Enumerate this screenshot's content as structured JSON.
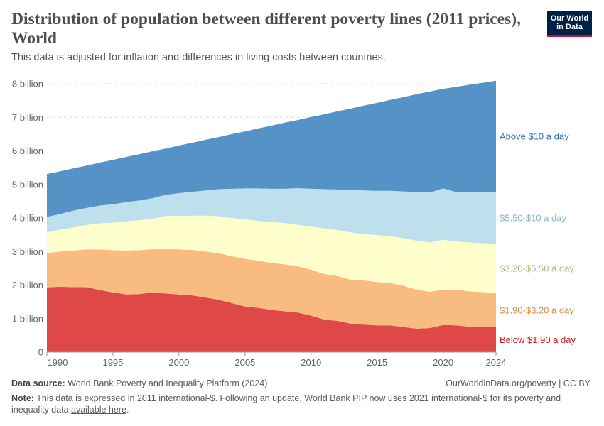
{
  "header": {
    "title": "Distribution of population between different poverty lines (2011 prices), World",
    "subtitle": "This data is adjusted for inflation and differences in living costs between countries.",
    "logo": "Our World in Data"
  },
  "footer": {
    "source_label": "Data source:",
    "source_text": "World Bank Poverty and Inequality Platform (2024)",
    "credit": "OurWorldinData.org/poverty | CC BY",
    "note_label": "Note:",
    "note_text": "This data is expressed in 2011 international-$. Following an update, World Bank PIP now uses 2021 international-$ for its poverty and inequality data ",
    "note_link": "available here",
    "note_end": "."
  },
  "chart_data": {
    "type": "area",
    "stacked": true,
    "title": "Distribution of population between different poverty lines (2011 prices), World",
    "xlim": [
      1990,
      2024
    ],
    "ylim": [
      0,
      8000000000
    ],
    "x_ticks": [
      1990,
      1995,
      2000,
      2005,
      2010,
      2015,
      2020,
      2024
    ],
    "y_ticks": [
      {
        "v": 0,
        "label": "0"
      },
      {
        "v": 1,
        "label": "1 billion"
      },
      {
        "v": 2,
        "label": "2 billion"
      },
      {
        "v": 3,
        "label": "3 billion"
      },
      {
        "v": 4,
        "label": "4 billion"
      },
      {
        "v": 5,
        "label": "5 billion"
      },
      {
        "v": 6,
        "label": "6 billion"
      },
      {
        "v": 7,
        "label": "7 billion"
      },
      {
        "v": 8,
        "label": "8 billion"
      }
    ],
    "y_unit": "billion",
    "grid": "horizontal dashed",
    "legend": "right, inline labels",
    "x": [
      1990,
      1991,
      1992,
      1993,
      1994,
      1995,
      1996,
      1997,
      1998,
      1999,
      2000,
      2001,
      2002,
      2003,
      2004,
      2005,
      2006,
      2007,
      2008,
      2009,
      2010,
      2011,
      2012,
      2013,
      2014,
      2015,
      2016,
      2017,
      2018,
      2019,
      2020,
      2021,
      2022,
      2023,
      2024
    ],
    "series": [
      {
        "name": "Below $1.90 a day",
        "color": "#df4848",
        "label_color": "#d2171d",
        "values": [
          1.93,
          1.95,
          1.94,
          1.94,
          1.85,
          1.78,
          1.72,
          1.73,
          1.78,
          1.75,
          1.72,
          1.69,
          1.63,
          1.56,
          1.46,
          1.36,
          1.32,
          1.26,
          1.22,
          1.18,
          1.09,
          0.97,
          0.93,
          0.85,
          0.82,
          0.8,
          0.8,
          0.75,
          0.7,
          0.72,
          0.81,
          0.8,
          0.76,
          0.75,
          0.74
        ]
      },
      {
        "name": "$1.90-$3.20 a day",
        "color": "#f9bc80",
        "label_color": "#e0893a",
        "values": [
          1.02,
          1.05,
          1.09,
          1.12,
          1.21,
          1.26,
          1.31,
          1.31,
          1.29,
          1.34,
          1.34,
          1.36,
          1.37,
          1.39,
          1.4,
          1.42,
          1.41,
          1.4,
          1.4,
          1.38,
          1.37,
          1.36,
          1.34,
          1.31,
          1.32,
          1.29,
          1.26,
          1.23,
          1.16,
          1.08,
          1.06,
          1.06,
          1.05,
          1.04,
          1.02
        ]
      },
      {
        "name": "$3.20-$5.50 a day",
        "color": "#fefecc",
        "label_color": "#b2b27a",
        "values": [
          0.62,
          0.65,
          0.69,
          0.73,
          0.78,
          0.82,
          0.87,
          0.89,
          0.91,
          0.97,
          1.0,
          1.02,
          1.07,
          1.1,
          1.14,
          1.18,
          1.18,
          1.22,
          1.23,
          1.24,
          1.28,
          1.36,
          1.37,
          1.41,
          1.38,
          1.4,
          1.4,
          1.42,
          1.46,
          1.47,
          1.48,
          1.44,
          1.46,
          1.46,
          1.47
        ]
      },
      {
        "name": "$5.50-$10 a day",
        "color": "#bde0ec",
        "label_color": "#88b4c6",
        "values": [
          0.46,
          0.47,
          0.5,
          0.51,
          0.53,
          0.55,
          0.57,
          0.59,
          0.61,
          0.63,
          0.68,
          0.71,
          0.75,
          0.81,
          0.87,
          0.92,
          0.97,
          0.99,
          1.02,
          1.09,
          1.13,
          1.17,
          1.21,
          1.26,
          1.3,
          1.32,
          1.35,
          1.39,
          1.45,
          1.49,
          1.53,
          1.47,
          1.5,
          1.52,
          1.54
        ]
      },
      {
        "name": "Above $10 a day",
        "color": "#5593c6",
        "label_color": "#2f73b3",
        "values": [
          1.28,
          1.27,
          1.26,
          1.26,
          1.28,
          1.32,
          1.35,
          1.38,
          1.4,
          1.38,
          1.42,
          1.46,
          1.51,
          1.55,
          1.63,
          1.7,
          1.79,
          1.88,
          1.97,
          2.03,
          2.14,
          2.23,
          2.33,
          2.43,
          2.53,
          2.62,
          2.71,
          2.81,
          2.92,
          3.01,
          2.97,
          3.14,
          3.2,
          3.26,
          3.32
        ]
      }
    ]
  }
}
